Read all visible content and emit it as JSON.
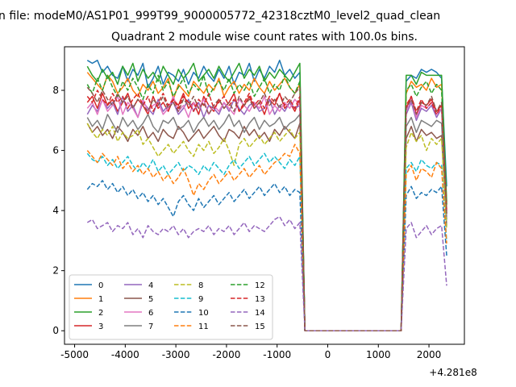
{
  "suptitle": "n file: modeM0/AS1P01_999T99_9000005772_42318cztM0_level2_quad_clean",
  "chart_data": {
    "type": "line",
    "title": "Quadrant 2 module wise count rates with 100.0s bins.",
    "x_offset_label": "+4.281e8",
    "xlim": [
      -5200,
      2700
    ],
    "ylim": [
      -0.45,
      9.45
    ],
    "xticks": [
      "-5000",
      "-4000",
      "-3000",
      "-2000",
      "-1000",
      "0",
      "1000",
      "2000"
    ],
    "xtick_values": [
      -5000,
      -4000,
      -3000,
      -2000,
      -1000,
      0,
      1000,
      2000
    ],
    "yticks": [
      "0",
      "2",
      "4",
      "6",
      "8"
    ],
    "ytick_values": [
      0,
      2,
      4,
      6,
      8
    ],
    "legend_position": "lower left",
    "x": [
      -4750,
      -4650,
      -4550,
      -4450,
      -4350,
      -4250,
      -4150,
      -4050,
      -3950,
      -3850,
      -3750,
      -3650,
      -3550,
      -3450,
      -3350,
      -3250,
      -3150,
      -3050,
      -2950,
      -2850,
      -2750,
      -2650,
      -2550,
      -2450,
      -2350,
      -2250,
      -2150,
      -2050,
      -1950,
      -1850,
      -1750,
      -1650,
      -1550,
      -1450,
      -1350,
      -1250,
      -1150,
      -1050,
      -950,
      -850,
      -750,
      -650,
      -550,
      -450,
      -350,
      -250,
      -150,
      -50,
      50,
      150,
      250,
      350,
      450,
      550,
      650,
      750,
      850,
      950,
      1050,
      1150,
      1250,
      1350,
      1450,
      1550,
      1650,
      1750,
      1850,
      1950,
      2050,
      2150,
      2250,
      2350
    ],
    "series": [
      {
        "name": "0",
        "color": "#1f77b4",
        "dash": "solid",
        "on": [
          9.0,
          8.9,
          9.0,
          8.6,
          8.8,
          8.5,
          8.4,
          8.8,
          8.3,
          8.7,
          8.5,
          8.9,
          8.1,
          8.4,
          8.8,
          8.2,
          8.6,
          8.5,
          8.3,
          8.7,
          8.2,
          8.6,
          8.4,
          8.8,
          8.5,
          8.3,
          8.7,
          8.4,
          8.8,
          8.2,
          8.6,
          8.5,
          8.9,
          8.3,
          8.7,
          8.4,
          8.8,
          8.6,
          9.0,
          8.5,
          8.7,
          8.4,
          8.6
        ],
        "off": [
          8.3,
          8.5,
          8.4,
          8.7,
          8.6,
          8.7,
          8.6,
          8.4,
          4.8
        ]
      },
      {
        "name": "1",
        "color": "#ff7f0e",
        "dash": "solid",
        "on": [
          8.6,
          8.4,
          8.2,
          8.0,
          8.5,
          8.3,
          7.9,
          8.1,
          8.4,
          8.0,
          7.8,
          8.2,
          8.0,
          8.3,
          7.9,
          8.1,
          8.4,
          7.7,
          8.2,
          8.0,
          7.8,
          8.3,
          8.1,
          7.9,
          8.2,
          8.0,
          8.4,
          7.8,
          8.1,
          8.3,
          7.9,
          8.2,
          8.0,
          8.4,
          8.1,
          7.9,
          8.3,
          8.0,
          8.2,
          8.4,
          8.1,
          7.9,
          8.2
        ],
        "off": [
          7.9,
          8.3,
          8.1,
          8.2,
          8.0,
          8.4,
          8.1,
          8.2,
          4.2
        ]
      },
      {
        "name": "2",
        "color": "#2ca02c",
        "dash": "solid",
        "on": [
          8.8,
          8.5,
          8.3,
          8.7,
          8.4,
          8.6,
          8.2,
          8.8,
          8.5,
          8.9,
          8.3,
          8.7,
          8.4,
          8.6,
          8.3,
          8.8,
          8.5,
          8.2,
          8.7,
          8.4,
          8.6,
          8.9,
          8.3,
          8.5,
          8.7,
          8.4,
          8.8,
          8.5,
          8.3,
          8.6,
          8.9,
          8.4,
          8.7,
          8.5,
          8.8,
          8.3,
          8.6,
          8.4,
          8.7,
          8.5,
          8.3,
          8.6,
          8.9
        ],
        "off": [
          8.5,
          8.5,
          8.2,
          8.6,
          8.5,
          8.5,
          8.5,
          8.5,
          4.3
        ]
      },
      {
        "name": "3",
        "color": "#d62728",
        "dash": "solid",
        "on": [
          7.6,
          7.8,
          7.4,
          7.9,
          7.5,
          7.7,
          7.3,
          7.6,
          7.9,
          7.4,
          7.7,
          7.5,
          7.2,
          7.8,
          7.4,
          7.6,
          7.3,
          7.7,
          7.5,
          7.9,
          7.4,
          7.6,
          7.2,
          7.8,
          7.5,
          7.3,
          7.7,
          7.4,
          7.6,
          7.9,
          7.3,
          7.5,
          7.8,
          7.4,
          7.6,
          7.2,
          7.7,
          7.5,
          7.9,
          7.4,
          7.6,
          7.3,
          7.7
        ],
        "off": [
          7.4,
          7.8,
          7.2,
          7.6,
          7.5,
          7.7,
          7.3,
          7.5,
          4.0
        ]
      },
      {
        "name": "4",
        "color": "#9467bd",
        "dash": "solid",
        "on": [
          7.2,
          7.5,
          7.3,
          7.7,
          7.4,
          7.6,
          7.2,
          7.8,
          7.3,
          7.5,
          7.1,
          7.6,
          7.4,
          7.2,
          7.7,
          7.3,
          7.5,
          7.6,
          7.2,
          7.4,
          7.7,
          7.3,
          7.6,
          7.1,
          7.5,
          7.4,
          7.2,
          7.6,
          7.3,
          7.7,
          7.4,
          7.2,
          7.5,
          7.6,
          7.3,
          7.4,
          7.7,
          7.2,
          7.5,
          7.3,
          7.6,
          7.4,
          7.5
        ],
        "off": [
          7.2,
          7.6,
          7.0,
          7.4,
          7.3,
          7.5,
          7.1,
          7.4,
          3.9
        ]
      },
      {
        "name": "5",
        "color": "#8c564b",
        "dash": "solid",
        "on": [
          6.9,
          6.6,
          6.8,
          6.5,
          6.7,
          6.4,
          6.8,
          6.6,
          6.3,
          6.7,
          6.5,
          6.8,
          6.4,
          6.6,
          6.3,
          6.7,
          6.5,
          6.4,
          6.8,
          6.6,
          6.3,
          6.5,
          6.7,
          6.4,
          6.6,
          6.8,
          6.5,
          6.3,
          6.7,
          6.6,
          6.4,
          6.8,
          6.5,
          6.7,
          6.4,
          6.6,
          6.3,
          6.7,
          6.5,
          6.8,
          6.6,
          6.4,
          6.9
        ],
        "off": [
          6.4,
          6.8,
          6.3,
          6.7,
          6.5,
          6.6,
          6.4,
          6.5,
          3.5
        ]
      },
      {
        "name": "6",
        "color": "#e377c2",
        "dash": "solid",
        "on": [
          7.4,
          7.6,
          7.2,
          7.7,
          7.3,
          7.5,
          7.8,
          7.2,
          7.6,
          7.4,
          7.1,
          7.7,
          7.3,
          7.5,
          7.6,
          7.2,
          7.4,
          7.8,
          7.3,
          7.5,
          7.1,
          7.6,
          7.4,
          7.7,
          7.2,
          7.5,
          7.3,
          7.6,
          7.4,
          7.2,
          7.7,
          7.5,
          7.3,
          7.6,
          7.4,
          7.8,
          7.2,
          7.5,
          7.3,
          7.6,
          7.4,
          7.7,
          7.5
        ],
        "off": [
          7.3,
          7.7,
          7.1,
          7.5,
          7.4,
          7.6,
          7.2,
          7.4,
          3.8
        ]
      },
      {
        "name": "7",
        "color": "#7f7f7f",
        "dash": "solid",
        "on": [
          7.1,
          6.8,
          7.0,
          6.7,
          7.2,
          6.9,
          6.6,
          7.1,
          6.8,
          7.0,
          6.7,
          6.9,
          7.2,
          6.8,
          6.6,
          7.0,
          6.9,
          7.1,
          6.7,
          6.8,
          7.0,
          6.6,
          6.9,
          7.1,
          6.8,
          7.0,
          6.7,
          6.9,
          7.2,
          6.8,
          7.0,
          6.6,
          6.9,
          7.1,
          6.7,
          7.0,
          6.8,
          6.9,
          7.1,
          6.7,
          6.9,
          7.0,
          7.2
        ],
        "off": [
          6.8,
          7.1,
          6.6,
          7.0,
          6.9,
          6.8,
          7.0,
          6.9,
          3.7
        ]
      },
      {
        "name": "8",
        "color": "#bcbd22",
        "dash": "dashed",
        "on": [
          6.9,
          6.6,
          6.4,
          6.7,
          6.5,
          6.8,
          6.3,
          6.6,
          6.4,
          6.5,
          6.7,
          6.2,
          6.4,
          6.1,
          5.8,
          6.0,
          6.2,
          5.9,
          6.1,
          6.3,
          6.0,
          5.8,
          6.2,
          6.0,
          6.3,
          5.9,
          6.1,
          6.4,
          6.0,
          5.5,
          6.2,
          6.4,
          6.1,
          6.3,
          6.5,
          6.2,
          6.4,
          6.6,
          6.3,
          6.5,
          6.7,
          6.4,
          6.6
        ],
        "off": [
          6.1,
          6.6,
          6.3,
          6.5,
          6.0,
          6.4,
          6.2,
          6.4,
          3.4
        ]
      },
      {
        "name": "9",
        "color": "#17becf",
        "dash": "dashed",
        "on": [
          5.9,
          5.7,
          5.6,
          5.8,
          5.5,
          5.7,
          5.4,
          5.6,
          5.8,
          5.5,
          5.3,
          5.6,
          5.4,
          5.7,
          5.3,
          5.5,
          5.2,
          5.4,
          5.6,
          5.3,
          5.5,
          5.4,
          5.2,
          5.5,
          5.3,
          5.6,
          5.4,
          5.2,
          5.5,
          5.7,
          5.4,
          5.6,
          5.8,
          5.5,
          5.7,
          5.9,
          5.6,
          5.8,
          5.6,
          5.4,
          5.7,
          5.5,
          5.8
        ],
        "off": [
          5.4,
          5.6,
          5.3,
          5.7,
          5.5,
          5.4,
          5.6,
          5.5,
          3.0
        ]
      },
      {
        "name": "10",
        "color": "#1f77b4",
        "dash": "dashed",
        "on": [
          4.7,
          4.9,
          4.8,
          5.0,
          4.7,
          4.9,
          4.6,
          4.8,
          4.5,
          4.7,
          4.4,
          4.6,
          4.3,
          4.5,
          4.2,
          4.4,
          4.1,
          3.8,
          4.3,
          4.5,
          4.2,
          4.0,
          4.4,
          4.1,
          4.3,
          4.5,
          4.2,
          4.4,
          4.6,
          4.3,
          4.5,
          4.7,
          4.4,
          4.6,
          4.8,
          4.5,
          4.7,
          4.9,
          4.6,
          4.8,
          4.5,
          4.7,
          4.6
        ],
        "off": [
          4.5,
          4.8,
          4.4,
          4.6,
          4.5,
          4.7,
          4.6,
          4.8,
          2.5
        ]
      },
      {
        "name": "11",
        "color": "#ff7f0e",
        "dash": "dashed",
        "on": [
          6.0,
          5.8,
          5.6,
          5.9,
          5.7,
          5.5,
          5.8,
          5.4,
          5.6,
          5.3,
          5.5,
          5.2,
          5.4,
          5.1,
          5.3,
          5.0,
          5.2,
          4.9,
          5.1,
          5.4,
          5.0,
          4.5,
          4.9,
          4.7,
          5.0,
          5.2,
          4.9,
          5.1,
          5.3,
          5.0,
          5.2,
          5.4,
          5.1,
          5.3,
          5.5,
          5.2,
          5.4,
          5.6,
          5.7,
          5.9,
          5.8,
          6.2,
          5.9
        ],
        "off": [
          5.2,
          5.5,
          5.0,
          5.4,
          5.3,
          5.1,
          5.6,
          5.4,
          2.9
        ]
      },
      {
        "name": "12",
        "color": "#2ca02c",
        "dash": "dashed",
        "on": [
          8.2,
          7.9,
          8.4,
          8.0,
          8.5,
          8.1,
          7.8,
          8.3,
          8.0,
          8.4,
          8.1,
          7.7,
          8.2,
          7.9,
          8.5,
          8.0,
          8.3,
          7.8,
          8.1,
          8.4,
          7.9,
          8.2,
          8.0,
          8.5,
          7.8,
          8.1,
          8.3,
          8.0,
          8.4,
          7.9,
          8.2,
          8.0,
          8.3,
          7.8,
          8.1,
          8.4,
          7.9,
          8.2,
          8.0,
          8.5,
          8.1,
          7.9,
          8.3
        ],
        "off": [
          8.0,
          8.2,
          7.8,
          8.1,
          8.3,
          7.9,
          8.2,
          8.0,
          4.2
        ]
      },
      {
        "name": "13",
        "color": "#d62728",
        "dash": "dashed",
        "on": [
          7.8,
          7.6,
          8.0,
          7.7,
          7.5,
          7.9,
          7.6,
          7.8,
          7.4,
          7.7,
          7.9,
          7.5,
          7.8,
          7.3,
          7.6,
          7.9,
          7.5,
          7.7,
          7.4,
          7.8,
          7.6,
          7.3,
          7.7,
          7.5,
          7.9,
          7.4,
          7.6,
          7.8,
          7.5,
          7.7,
          7.3,
          7.6,
          7.9,
          7.5,
          7.7,
          7.4,
          7.8,
          7.6,
          7.9,
          7.5,
          7.7,
          7.4,
          7.8
        ],
        "off": [
          7.5,
          7.8,
          7.3,
          7.7,
          7.4,
          7.6,
          7.2,
          7.5,
          4.0
        ]
      },
      {
        "name": "14",
        "color": "#9467bd",
        "dash": "dashed",
        "on": [
          3.6,
          3.7,
          3.4,
          3.5,
          3.6,
          3.3,
          3.5,
          3.4,
          3.6,
          3.2,
          3.4,
          3.1,
          3.5,
          3.3,
          3.2,
          3.4,
          3.3,
          3.5,
          3.2,
          3.4,
          3.1,
          3.3,
          3.4,
          3.3,
          3.5,
          3.2,
          3.4,
          3.3,
          3.5,
          3.2,
          3.4,
          3.6,
          3.3,
          3.5,
          3.4,
          3.3,
          3.5,
          3.7,
          3.8,
          3.5,
          3.7,
          3.4,
          3.6
        ],
        "off": [
          3.4,
          3.6,
          3.1,
          3.3,
          3.5,
          3.2,
          3.4,
          3.5,
          1.5
        ]
      },
      {
        "name": "15",
        "color": "#8c564b",
        "dash": "dashed",
        "on": [
          8.1,
          7.9,
          7.6,
          8.0,
          7.7,
          7.5,
          7.9,
          7.6,
          7.8,
          7.4,
          7.7,
          7.5,
          7.3,
          7.7,
          7.5,
          7.8,
          7.4,
          7.6,
          7.3,
          7.7,
          7.5,
          7.8,
          7.4,
          7.6,
          7.2,
          7.5,
          7.7,
          7.4,
          7.6,
          7.3,
          7.8,
          7.5,
          7.7,
          7.4,
          7.6,
          7.9,
          7.5,
          7.7,
          7.4,
          7.8,
          7.6,
          7.9,
          8.1
        ],
        "off": [
          7.4,
          7.7,
          7.2,
          7.6,
          7.5,
          7.8,
          7.3,
          7.6,
          3.9
        ]
      }
    ],
    "gap_value": 0
  }
}
